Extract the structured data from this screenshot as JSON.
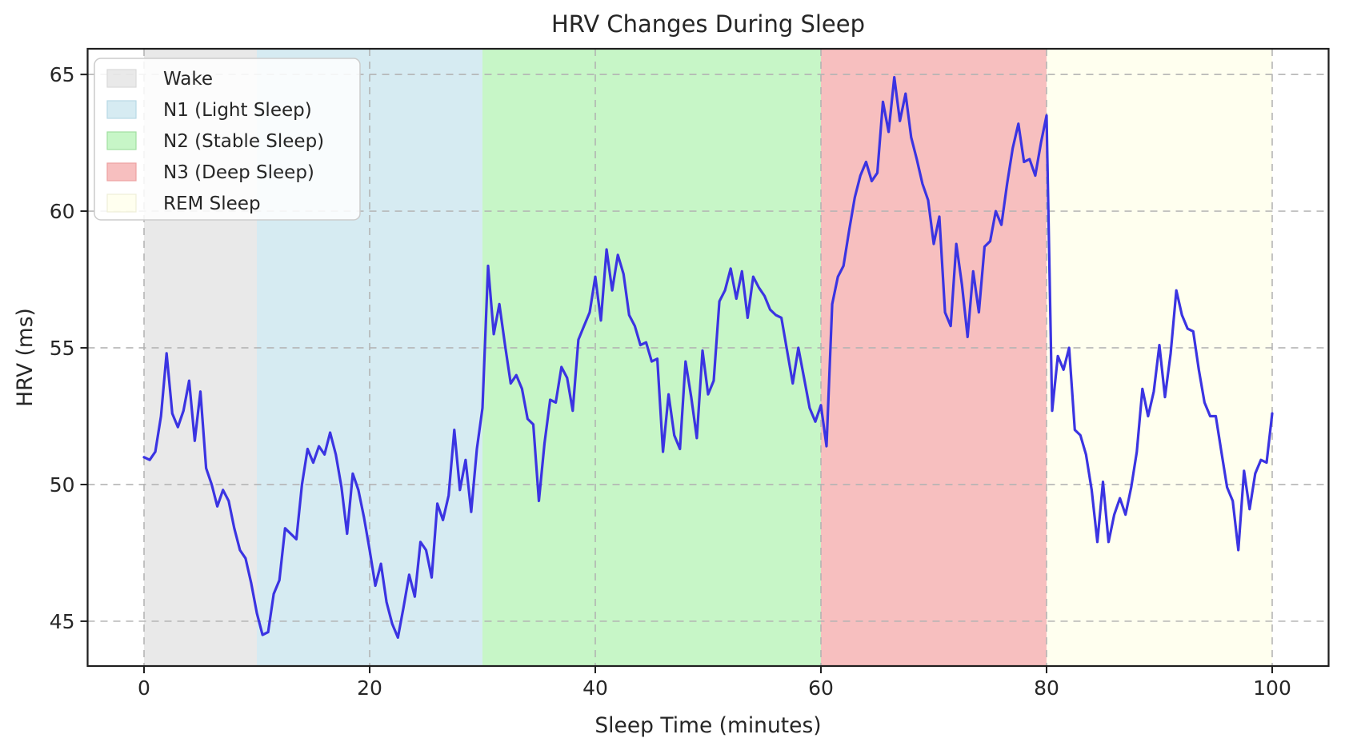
{
  "figure": {
    "background": "#ffffff"
  },
  "chart_data": {
    "type": "line",
    "title": "HRV Changes During Sleep",
    "xlabel": "Sleep Time (minutes)",
    "ylabel": "HRV (ms)",
    "xlim": [
      -5,
      105
    ],
    "ylim": [
      43.36,
      65.94
    ],
    "xticks": [
      0,
      20,
      40,
      60,
      80,
      100
    ],
    "yticks": [
      45,
      50,
      55,
      60,
      65
    ],
    "grid": true,
    "grid_color": "#b3b3b3",
    "legend_position": "upper left",
    "regions": [
      {
        "id": "wake",
        "label": "Wake",
        "start": 0,
        "end": 10,
        "fill": "rgba(211,211,211,0.5)",
        "edge": "#d9d9d9"
      },
      {
        "id": "n1",
        "label": "N1 (Light Sleep)",
        "start": 10,
        "end": 30,
        "fill": "rgba(173,216,230,0.5)",
        "edge": "#b8d9e6"
      },
      {
        "id": "n2",
        "label": "N2 (Stable Sleep)",
        "start": 30,
        "end": 60,
        "fill": "rgba(144,238,144,0.5)",
        "edge": "#a0e0a0"
      },
      {
        "id": "n3",
        "label": "N3 (Deep Sleep)",
        "start": 60,
        "end": 80,
        "fill": "rgba(240,128,128,0.5)",
        "edge": "#eda2a2"
      },
      {
        "id": "rem",
        "label": "REM Sleep",
        "start": 80,
        "end": 100,
        "fill": "rgba(255,255,224,0.5)",
        "edge": "#eeeed8"
      }
    ],
    "series": [
      {
        "name": "HRV",
        "color": "#3b34e2",
        "line_width": 3.2,
        "x_start": 0,
        "x_step": 0.5,
        "values": [
          51.0,
          50.9,
          51.2,
          52.5,
          54.8,
          52.6,
          52.1,
          52.7,
          53.8,
          51.6,
          53.4,
          50.6,
          50.0,
          49.2,
          49.8,
          49.4,
          48.4,
          47.6,
          47.3,
          46.4,
          45.3,
          44.5,
          44.6,
          46.0,
          46.5,
          48.4,
          48.2,
          48.0,
          50.0,
          51.3,
          50.8,
          51.4,
          51.1,
          51.9,
          51.1,
          49.9,
          48.2,
          50.4,
          49.8,
          48.8,
          47.6,
          46.3,
          47.1,
          45.7,
          44.9,
          44.4,
          45.5,
          46.7,
          45.9,
          47.9,
          47.6,
          46.6,
          49.3,
          48.7,
          49.6,
          52.0,
          49.8,
          50.9,
          49.0,
          51.3,
          52.8,
          58.0,
          55.5,
          56.6,
          55.1,
          53.7,
          54.0,
          53.5,
          52.4,
          52.2,
          49.4,
          51.5,
          53.1,
          53.0,
          54.3,
          53.9,
          52.7,
          55.3,
          55.8,
          56.3,
          57.6,
          56.0,
          58.6,
          57.1,
          58.4,
          57.7,
          56.2,
          55.8,
          55.1,
          55.2,
          54.5,
          54.6,
          51.2,
          53.3,
          51.8,
          51.3,
          54.5,
          53.2,
          51.7,
          54.9,
          53.3,
          53.8,
          56.7,
          57.1,
          57.9,
          56.8,
          57.8,
          56.1,
          57.6,
          57.2,
          56.9,
          56.4,
          56.2,
          56.1,
          54.9,
          53.7,
          55.0,
          53.9,
          52.8,
          52.3,
          52.9,
          51.4,
          56.6,
          57.6,
          58.0,
          59.3,
          60.5,
          61.3,
          61.8,
          61.1,
          61.4,
          64.0,
          62.9,
          64.9,
          63.3,
          64.3,
          62.7,
          61.9,
          61.0,
          60.4,
          58.8,
          59.8,
          56.3,
          55.8,
          58.8,
          57.3,
          55.4,
          57.8,
          56.3,
          58.7,
          58.9,
          60.0,
          59.5,
          61.0,
          62.3,
          63.2,
          61.8,
          61.9,
          61.3,
          62.5,
          63.5,
          52.7,
          54.7,
          54.2,
          55.0,
          52.0,
          51.8,
          51.1,
          49.8,
          47.9,
          50.1,
          47.9,
          48.9,
          49.5,
          48.9,
          49.9,
          51.2,
          53.5,
          52.5,
          53.4,
          55.1,
          53.2,
          54.8,
          57.1,
          56.2,
          55.7,
          55.6,
          54.2,
          53.0,
          52.5,
          52.5,
          51.2,
          49.9,
          49.4,
          47.6,
          50.5,
          49.1,
          50.4,
          50.9,
          50.8,
          52.6
        ]
      }
    ]
  }
}
